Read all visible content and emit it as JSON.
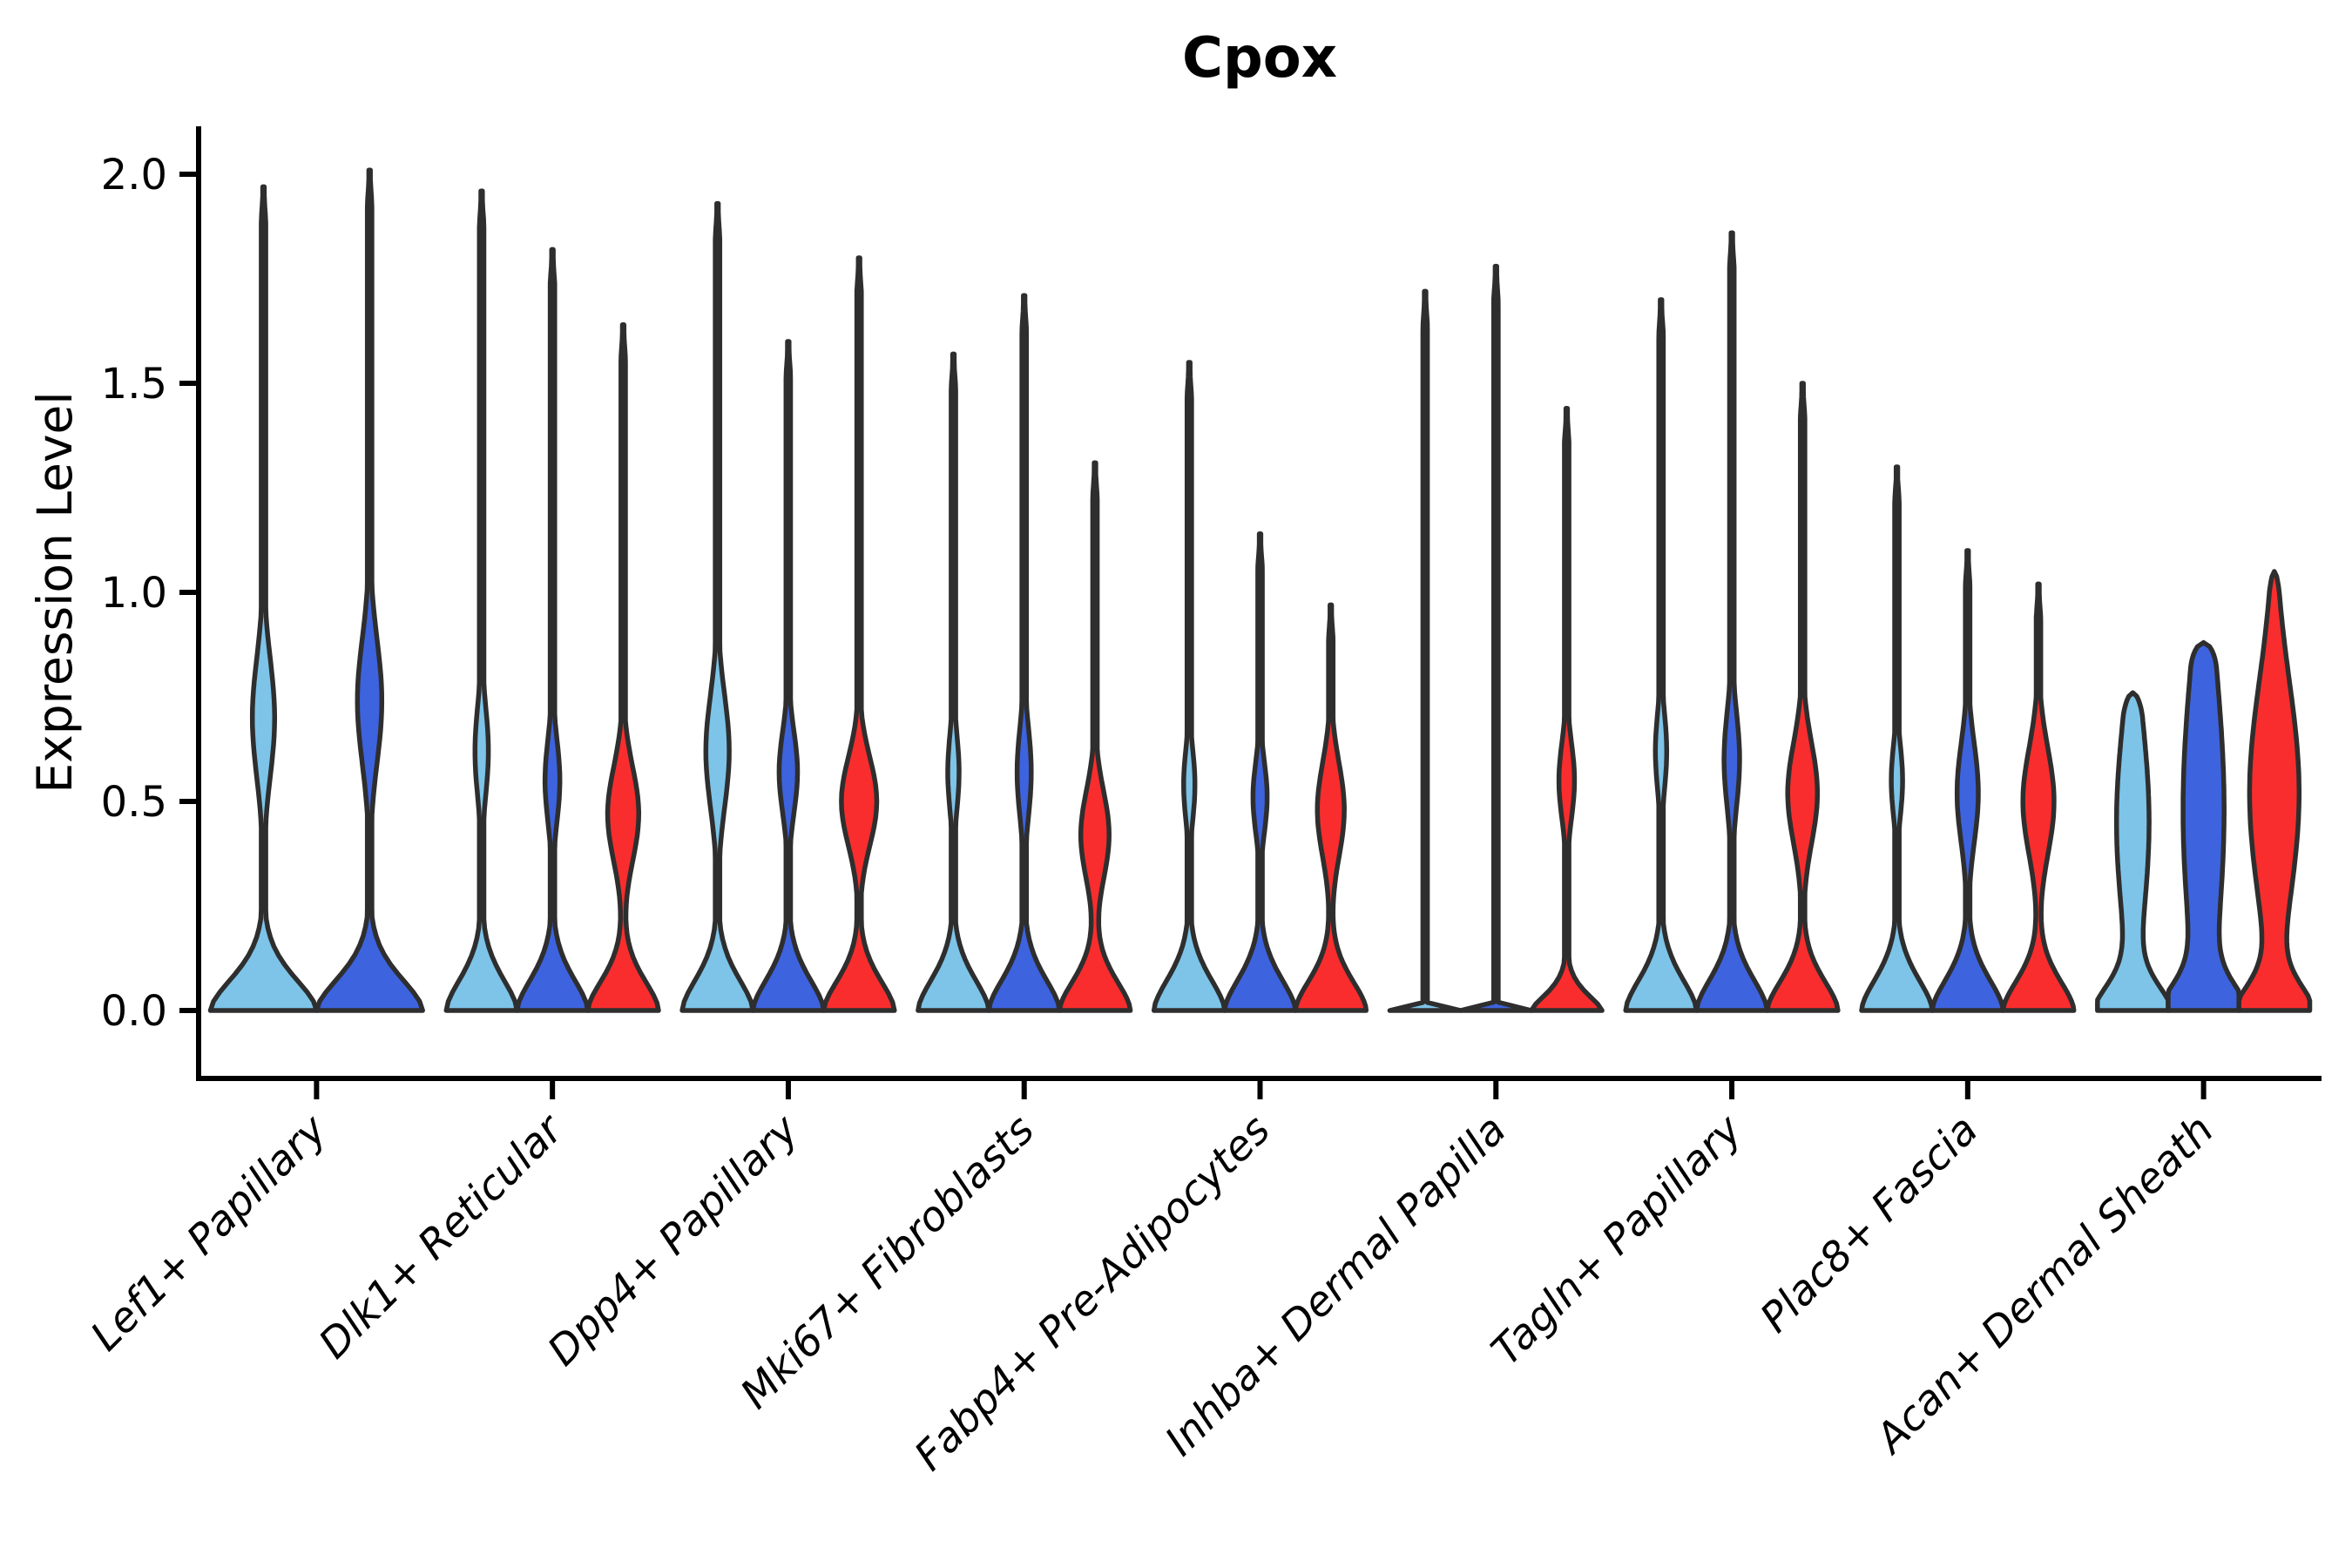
{
  "chart_data": {
    "type": "violin",
    "title": "Cpox",
    "ylabel": "Expression Level",
    "xlabel": "",
    "ylim": [
      0,
      2.05
    ],
    "yticks": [
      "0.0",
      "0.5",
      "1.0",
      "1.5",
      "2.0"
    ],
    "ytick_values": [
      0.0,
      0.5,
      1.0,
      1.5,
      2.0
    ],
    "grid": false,
    "legend_position": "none",
    "axis_color": "#000000",
    "outline_color": "#2e2e2e",
    "split_colors": {
      "light_blue": "#7DC4E8",
      "dark_blue": "#3D63DF",
      "red": "#F92D2D"
    },
    "categories": [
      "Lef1+ Papillary",
      "Dlk1+ Reticular",
      "Dpp4+ Papillary",
      "Mki67+ Fibroblasts",
      "Fabp4+ Pre-Adipocytes",
      "Inhba+ Dermal Papilla",
      "Tagln+ Papillary",
      "Plac8+ Fascia",
      "Acan+ Dermal Sheath"
    ],
    "groups": [
      {
        "category": "Lef1+ Papillary",
        "violins": [
          {
            "split": "light_blue",
            "max": 1.97,
            "base": {
              "a": 1,
              "b": 0.115,
              "p": 1.7
            },
            "bulge": {
              "a": 0.21,
              "c": 0.7,
              "s": 0.2
            },
            "spike": true,
            "cap": false
          },
          {
            "split": "dark_blue",
            "max": 2.01,
            "base": {
              "a": 1,
              "b": 0.115,
              "p": 1.7
            },
            "bulge": {
              "a": 0.23,
              "c": 0.74,
              "s": 0.21
            },
            "spike": true,
            "cap": false
          }
        ]
      },
      {
        "category": "Dlk1+ Reticular",
        "violins": [
          {
            "split": "light_blue",
            "max": 1.96,
            "base": {
              "a": 1,
              "b": 0.115,
              "p": 1.7
            },
            "bulge": {
              "a": 0.19,
              "c": 0.62,
              "s": 0.15
            },
            "spike": true,
            "cap": false
          },
          {
            "split": "dark_blue",
            "max": 1.82,
            "base": {
              "a": 1,
              "b": 0.115,
              "p": 1.7
            },
            "bulge": {
              "a": 0.21,
              "c": 0.55,
              "s": 0.14
            },
            "spike": true,
            "cap": false
          },
          {
            "split": "red",
            "max": 1.64,
            "base": {
              "a": 1,
              "b": 0.11,
              "p": 1.7
            },
            "bulge": {
              "a": 0.44,
              "c": 0.47,
              "s": 0.16
            },
            "spike": true,
            "cap": false
          }
        ]
      },
      {
        "category": "Dpp4+ Papillary",
        "violins": [
          {
            "split": "light_blue",
            "max": 1.93,
            "base": {
              "a": 1,
              "b": 0.115,
              "p": 1.7
            },
            "bulge": {
              "a": 0.33,
              "c": 0.62,
              "s": 0.19
            },
            "spike": true,
            "cap": false
          },
          {
            "split": "dark_blue",
            "max": 1.6,
            "base": {
              "a": 1,
              "b": 0.115,
              "p": 1.7
            },
            "bulge": {
              "a": 0.26,
              "c": 0.57,
              "s": 0.14
            },
            "spike": true,
            "cap": false
          },
          {
            "split": "red",
            "max": 1.8,
            "base": {
              "a": 1,
              "b": 0.11,
              "p": 1.7
            },
            "bulge": {
              "a": 0.5,
              "c": 0.5,
              "s": 0.15
            },
            "spike": true,
            "cap": false
          }
        ]
      },
      {
        "category": "Mki67+ Fibroblasts",
        "violins": [
          {
            "split": "light_blue",
            "max": 1.57,
            "base": {
              "a": 1,
              "b": 0.115,
              "p": 1.7
            },
            "bulge": {
              "a": 0.16,
              "c": 0.57,
              "s": 0.13
            },
            "spike": true,
            "cap": false
          },
          {
            "split": "dark_blue",
            "max": 1.71,
            "base": {
              "a": 1,
              "b": 0.115,
              "p": 1.7
            },
            "bulge": {
              "a": 0.2,
              "c": 0.57,
              "s": 0.15
            },
            "spike": true,
            "cap": false
          },
          {
            "split": "red",
            "max": 1.31,
            "base": {
              "a": 1,
              "b": 0.11,
              "p": 1.7
            },
            "bulge": {
              "a": 0.4,
              "c": 0.42,
              "s": 0.15
            },
            "spike": true,
            "cap": false
          }
        ]
      },
      {
        "category": "Fabp4+ Pre-Adipocytes",
        "violins": [
          {
            "split": "light_blue",
            "max": 1.55,
            "base": {
              "a": 1,
              "b": 0.115,
              "p": 1.7
            },
            "bulge": {
              "a": 0.16,
              "c": 0.54,
              "s": 0.12
            },
            "spike": true,
            "cap": false
          },
          {
            "split": "dark_blue",
            "max": 1.14,
            "base": {
              "a": 1,
              "b": 0.115,
              "p": 1.7
            },
            "bulge": {
              "a": 0.2,
              "c": 0.51,
              "s": 0.12
            },
            "spike": true,
            "cap": false
          },
          {
            "split": "red",
            "max": 0.97,
            "base": {
              "a": 1,
              "b": 0.11,
              "p": 1.7
            },
            "bulge": {
              "a": 0.38,
              "c": 0.48,
              "s": 0.16
            },
            "spike": true,
            "cap": false
          }
        ]
      },
      {
        "category": "Inhba+ Dermal Papilla",
        "violins": [
          {
            "split": "light_blue",
            "max": 1.72,
            "base": {
              "a": 1,
              "b": 0.004,
              "p": 1.0
            },
            "bulge": null,
            "spike": true,
            "cap": false
          },
          {
            "split": "dark_blue",
            "max": 1.78,
            "base": {
              "a": 1,
              "b": 0.004,
              "p": 1.0
            },
            "bulge": null,
            "spike": true,
            "cap": false
          },
          {
            "split": "red",
            "max": 1.44,
            "base": {
              "a": 1,
              "b": 0.06,
              "p": 1.5
            },
            "bulge": {
              "a": 0.22,
              "c": 0.55,
              "s": 0.13
            },
            "spike": true,
            "cap": false
          }
        ]
      },
      {
        "category": "Tagln+ Papillary",
        "violins": [
          {
            "split": "light_blue",
            "max": 1.7,
            "base": {
              "a": 1,
              "b": 0.115,
              "p": 1.7
            },
            "bulge": {
              "a": 0.16,
              "c": 0.62,
              "s": 0.13
            },
            "spike": true,
            "cap": false
          },
          {
            "split": "dark_blue",
            "max": 1.86,
            "base": {
              "a": 1,
              "b": 0.115,
              "p": 1.7
            },
            "bulge": {
              "a": 0.22,
              "c": 0.6,
              "s": 0.16
            },
            "spike": true,
            "cap": false
          },
          {
            "split": "red",
            "max": 1.5,
            "base": {
              "a": 1,
              "b": 0.11,
              "p": 1.7
            },
            "bulge": {
              "a": 0.42,
              "c": 0.52,
              "s": 0.17
            },
            "spike": true,
            "cap": false
          }
        ]
      },
      {
        "category": "Plac8+ Fascia",
        "violins": [
          {
            "split": "light_blue",
            "max": 1.3,
            "base": {
              "a": 1,
              "b": 0.115,
              "p": 1.7
            },
            "bulge": {
              "a": 0.16,
              "c": 0.55,
              "s": 0.12
            },
            "spike": true,
            "cap": false
          },
          {
            "split": "dark_blue",
            "max": 1.1,
            "base": {
              "a": 1,
              "b": 0.115,
              "p": 1.7
            },
            "bulge": {
              "a": 0.3,
              "c": 0.52,
              "s": 0.17
            },
            "spike": true,
            "cap": false
          },
          {
            "split": "red",
            "max": 1.02,
            "base": {
              "a": 1,
              "b": 0.11,
              "p": 1.7
            },
            "bulge": {
              "a": 0.44,
              "c": 0.5,
              "s": 0.18
            },
            "spike": true,
            "cap": false
          }
        ]
      },
      {
        "category": "Acan+ Dermal Sheath",
        "violins": [
          {
            "split": "light_blue",
            "max": 0.76,
            "base": {
              "a": 1,
              "b": 0.09,
              "p": 1.7
            },
            "bulge": {
              "a": 0.46,
              "c": 0.45,
              "s": 0.35
            },
            "spike": false,
            "cap": true
          },
          {
            "split": "dark_blue",
            "max": 0.88,
            "base": {
              "a": 1,
              "b": 0.09,
              "p": 1.7
            },
            "bulge": {
              "a": 0.58,
              "c": 0.48,
              "s": 0.5
            },
            "spike": false,
            "cap": true
          },
          {
            "split": "red",
            "max": 1.05,
            "base": {
              "a": 1,
              "b": 0.09,
              "p": 1.7
            },
            "bulge": {
              "a": 0.7,
              "c": 0.52,
              "s": 0.38
            },
            "spike": false,
            "cap": true
          }
        ]
      }
    ]
  }
}
